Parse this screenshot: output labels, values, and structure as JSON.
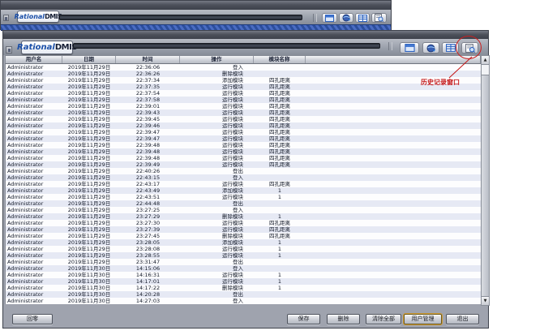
{
  "brand": {
    "name_italic": "Rational",
    "name_bold": "DMIS"
  },
  "colors": {
    "annotation_red": "#c41414",
    "stripe_blue": "#2c4e9c",
    "highlight_gold": "#cf9a31"
  },
  "background_window": {
    "toolbar_icons": [
      "window-icon",
      "globe-icon",
      "table-icon",
      "history-icon"
    ]
  },
  "window": {
    "toolbar_icons": [
      "window-icon",
      "globe-icon",
      "table-icon",
      "history-icon"
    ],
    "table": {
      "columns": [
        "用户名",
        "日期",
        "时间",
        "操作",
        "模块名称"
      ],
      "rows": [
        [
          "Administrator",
          "2019年11月29日",
          "22:36:06",
          "登入",
          ""
        ],
        [
          "Administrator",
          "2019年11月29日",
          "22:36:26",
          "删除模块",
          ""
        ],
        [
          "Administrator",
          "2019年11月29日",
          "22:37:34",
          "添加模块",
          "四孔距离"
        ],
        [
          "Administrator",
          "2019年11月29日",
          "22:37:35",
          "运行模块",
          "四孔距离"
        ],
        [
          "Administrator",
          "2019年11月29日",
          "22:37:54",
          "运行模块",
          "四孔距离"
        ],
        [
          "Administrator",
          "2019年11月29日",
          "22:37:58",
          "运行模块",
          "四孔距离"
        ],
        [
          "Administrator",
          "2019年11月29日",
          "22:39:01",
          "运行模块",
          "四孔距离"
        ],
        [
          "Administrator",
          "2019年11月29日",
          "22:39:43",
          "运行模块",
          "四孔距离"
        ],
        [
          "Administrator",
          "2019年11月29日",
          "22:39:45",
          "运行模块",
          "四孔距离"
        ],
        [
          "Administrator",
          "2019年11月29日",
          "22:39:46",
          "运行模块",
          "四孔距离"
        ],
        [
          "Administrator",
          "2019年11月29日",
          "22:39:47",
          "运行模块",
          "四孔距离"
        ],
        [
          "Administrator",
          "2019年11月29日",
          "22:39:47",
          "运行模块",
          "四孔距离"
        ],
        [
          "Administrator",
          "2019年11月29日",
          "22:39:48",
          "运行模块",
          "四孔距离"
        ],
        [
          "Administrator",
          "2019年11月29日",
          "22:39:48",
          "运行模块",
          "四孔距离"
        ],
        [
          "Administrator",
          "2019年11月29日",
          "22:39:48",
          "运行模块",
          "四孔距离"
        ],
        [
          "Administrator",
          "2019年11月29日",
          "22:39:49",
          "运行模块",
          "四孔距离"
        ],
        [
          "Administrator",
          "2019年11月29日",
          "22:40:26",
          "登出",
          ""
        ],
        [
          "Administrator",
          "2019年11月29日",
          "22:43:15",
          "登入",
          ""
        ],
        [
          "Administrator",
          "2019年11月29日",
          "22:43:17",
          "运行模块",
          "四孔距离"
        ],
        [
          "Administrator",
          "2019年11月29日",
          "22:43:49",
          "添加模块",
          "1"
        ],
        [
          "Administrator",
          "2019年11月29日",
          "22:43:51",
          "运行模块",
          "1"
        ],
        [
          "Administrator",
          "2019年11月29日",
          "22:44:48",
          "登出",
          ""
        ],
        [
          "Administrator",
          "2019年11月29日",
          "23:27:25",
          "登入",
          ""
        ],
        [
          "Administrator",
          "2019年11月29日",
          "23:27:29",
          "删除模块",
          "1"
        ],
        [
          "Administrator",
          "2019年11月29日",
          "23:27:30",
          "运行模块",
          "四孔距离"
        ],
        [
          "Administrator",
          "2019年11月29日",
          "23:27:39",
          "运行模块",
          "四孔距离"
        ],
        [
          "Administrator",
          "2019年11月29日",
          "23:27:45",
          "删除模块",
          "四孔距离"
        ],
        [
          "Administrator",
          "2019年11月29日",
          "23:28:05",
          "添加模块",
          "1"
        ],
        [
          "Administrator",
          "2019年11月29日",
          "23:28:08",
          "运行模块",
          "1"
        ],
        [
          "Administrator",
          "2019年11月29日",
          "23:28:55",
          "运行模块",
          "1"
        ],
        [
          "Administrator",
          "2019年11月29日",
          "23:31:47",
          "登出",
          ""
        ],
        [
          "Administrator",
          "2019年11月30日",
          "14:15:06",
          "登入",
          ""
        ],
        [
          "Administrator",
          "2019年11月30日",
          "14:16:31",
          "运行模块",
          "1"
        ],
        [
          "Administrator",
          "2019年11月30日",
          "14:17:01",
          "运行模块",
          "1"
        ],
        [
          "Administrator",
          "2019年11月30日",
          "14:17:22",
          "删除模块",
          "1"
        ],
        [
          "Administrator",
          "2019年11月30日",
          "14:20:28",
          "登出",
          ""
        ],
        [
          "Administrator",
          "2019年11月30日",
          "14:27:03",
          "登入",
          ""
        ]
      ]
    },
    "footer": {
      "back": "回零",
      "save": "保存",
      "delete": "删除",
      "clear_all": "清除全部",
      "user_management": "用户管理",
      "exit": "退出"
    }
  },
  "annotation": {
    "label": "历史记录窗口"
  }
}
